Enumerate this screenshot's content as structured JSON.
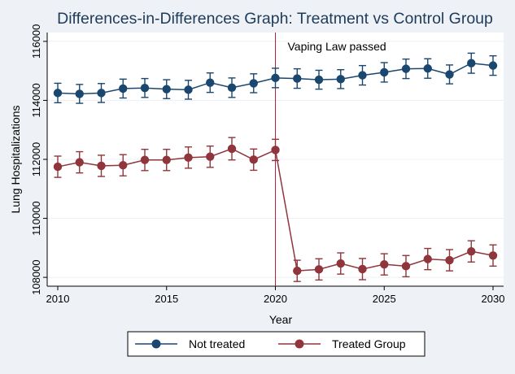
{
  "chart_data": {
    "type": "line",
    "title": "Differences-in-Differences Graph: Treatment vs Control Group",
    "xlabel": "Year",
    "ylabel": "Lung Hospitalizations",
    "xlim": [
      2010,
      2030
    ],
    "ylim": [
      107700,
      116300
    ],
    "x_ticks": [
      2010,
      2015,
      2020,
      2025,
      2030
    ],
    "y_ticks": [
      108000,
      110000,
      112000,
      114000,
      116000
    ],
    "grid": "horizontal",
    "legend_position": "bottom",
    "annotations": [
      {
        "text": "Vaping Law passed",
        "x": 2020,
        "type": "vertical-line",
        "color": "#b5203c"
      }
    ],
    "x": [
      2010,
      2011,
      2012,
      2013,
      2014,
      2015,
      2016,
      2017,
      2018,
      2019,
      2020,
      2021,
      2022,
      2023,
      2024,
      2025,
      2026,
      2027,
      2028,
      2029,
      2030
    ],
    "series": [
      {
        "name": "Not treated",
        "color": "#1a476f",
        "values": [
          114250,
          114220,
          114250,
          114400,
          114420,
          114380,
          114360,
          114600,
          114430,
          114580,
          114760,
          114740,
          114700,
          114720,
          114850,
          114950,
          115070,
          115080,
          114880,
          115260,
          115180
        ],
        "ci_lower": [
          113920,
          113900,
          113930,
          114080,
          114100,
          114060,
          114040,
          114270,
          114100,
          114260,
          114430,
          114410,
          114380,
          114400,
          114520,
          114620,
          114740,
          114750,
          114560,
          114920,
          114850
        ],
        "ci_upper": [
          114580,
          114540,
          114570,
          114720,
          114740,
          114700,
          114680,
          114930,
          114760,
          114900,
          115090,
          115070,
          115020,
          115040,
          115180,
          115280,
          115400,
          115410,
          115200,
          115600,
          115510
        ]
      },
      {
        "name": "Treated Group",
        "color": "#90353b",
        "values": [
          111750,
          111900,
          111780,
          111800,
          111980,
          111980,
          112060,
          112090,
          112360,
          111990,
          112320,
          108220,
          108270,
          108470,
          108280,
          108440,
          108380,
          108620,
          108580,
          108880,
          108740
        ],
        "ci_lower": [
          111390,
          111540,
          111420,
          111440,
          111620,
          111620,
          111700,
          111730,
          111980,
          111630,
          111960,
          107860,
          107910,
          108110,
          107920,
          108080,
          108020,
          108260,
          108220,
          108520,
          108380
        ],
        "ci_upper": [
          112110,
          112260,
          112140,
          112160,
          112340,
          112340,
          112420,
          112450,
          112740,
          112350,
          112680,
          108580,
          108630,
          108830,
          108640,
          108800,
          108740,
          108980,
          108940,
          109240,
          109100
        ]
      }
    ]
  },
  "colors": {
    "page_background": "#eef2f6",
    "plot_background": "#ffffff",
    "grid": "#eaf0f5",
    "title": "#1f3b5a"
  }
}
